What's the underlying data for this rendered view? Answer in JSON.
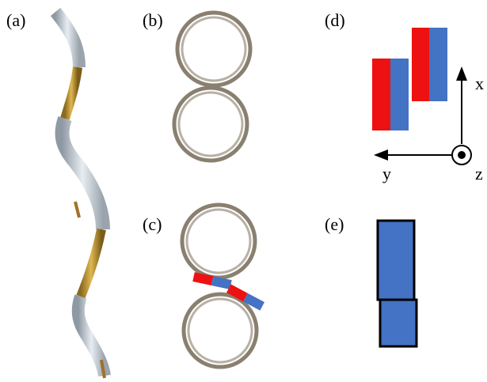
{
  "panels": [
    {
      "label": "(a)"
    },
    {
      "label": "(b)"
    },
    {
      "label": "(c)"
    },
    {
      "label": "(d)"
    },
    {
      "label": "(e)"
    }
  ],
  "axes": {
    "x": "x",
    "y": "y",
    "z": "z"
  }
}
